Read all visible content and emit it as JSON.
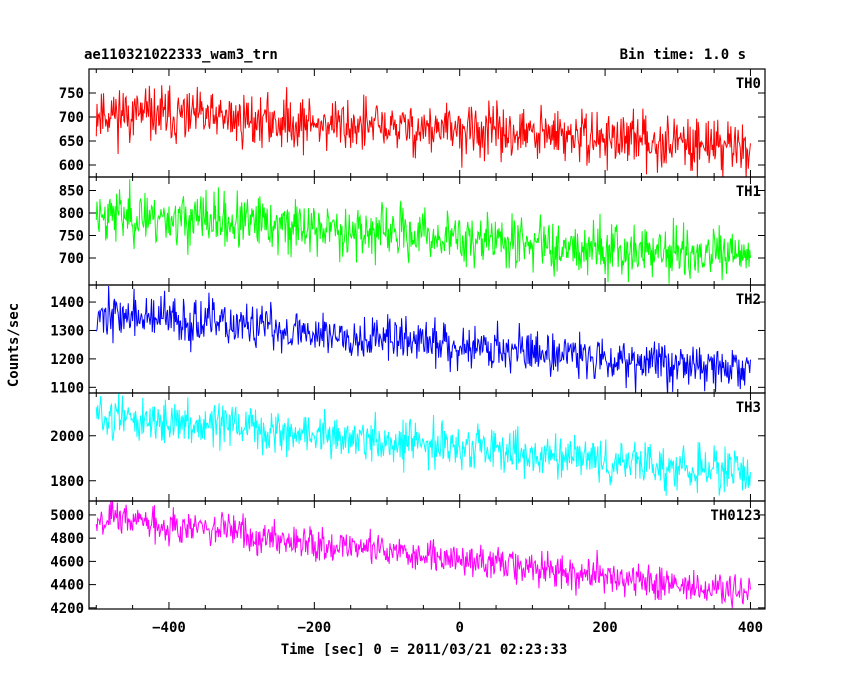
{
  "header": {
    "title": "ae110321022333_wam3_trn",
    "bin_time": "Bin time: 1.0 s"
  },
  "chart_data": {
    "type": "line",
    "xlabel": "Time [sec] 0 = 2011/03/21 02:23:33",
    "ylabel": "Counts/sec",
    "xlim": [
      -510,
      420
    ],
    "x_ticks": [
      -400,
      -200,
      0,
      200,
      400
    ],
    "x": [
      -500,
      400
    ],
    "panels": [
      {
        "name": "TH0",
        "color": "#ff0000",
        "ylim": [
          575,
          800
        ],
        "y_ticks": [
          600,
          650,
          700,
          750
        ],
        "trend": [
          710,
          640
        ],
        "noise_sd": 28,
        "seed": 11
      },
      {
        "name": "TH1",
        "color": "#00ff00",
        "ylim": [
          640,
          880
        ],
        "y_ticks": [
          700,
          750,
          800,
          850
        ],
        "trend": [
          800,
          700
        ],
        "noise_sd": 30,
        "seed": 23
      },
      {
        "name": "TH2",
        "color": "#0000ff",
        "ylim": [
          1080,
          1460
        ],
        "y_ticks": [
          1100,
          1200,
          1300,
          1400
        ],
        "trend": [
          1360,
          1160
        ],
        "noise_sd": 40,
        "seed": 37
      },
      {
        "name": "TH3",
        "color": "#00ffff",
        "ylim": [
          1710,
          2190
        ],
        "y_ticks": [
          1800,
          2000
        ],
        "trend": [
          2090,
          1830
        ],
        "noise_sd": 48,
        "seed": 51
      },
      {
        "name": "TH0123",
        "color": "#ff00ff",
        "ylim": [
          4190,
          5120
        ],
        "y_ticks": [
          4200,
          4400,
          4600,
          4800,
          5000
        ],
        "trend": [
          4990,
          4320
        ],
        "noise_sd": 75,
        "seed": 67
      }
    ]
  }
}
